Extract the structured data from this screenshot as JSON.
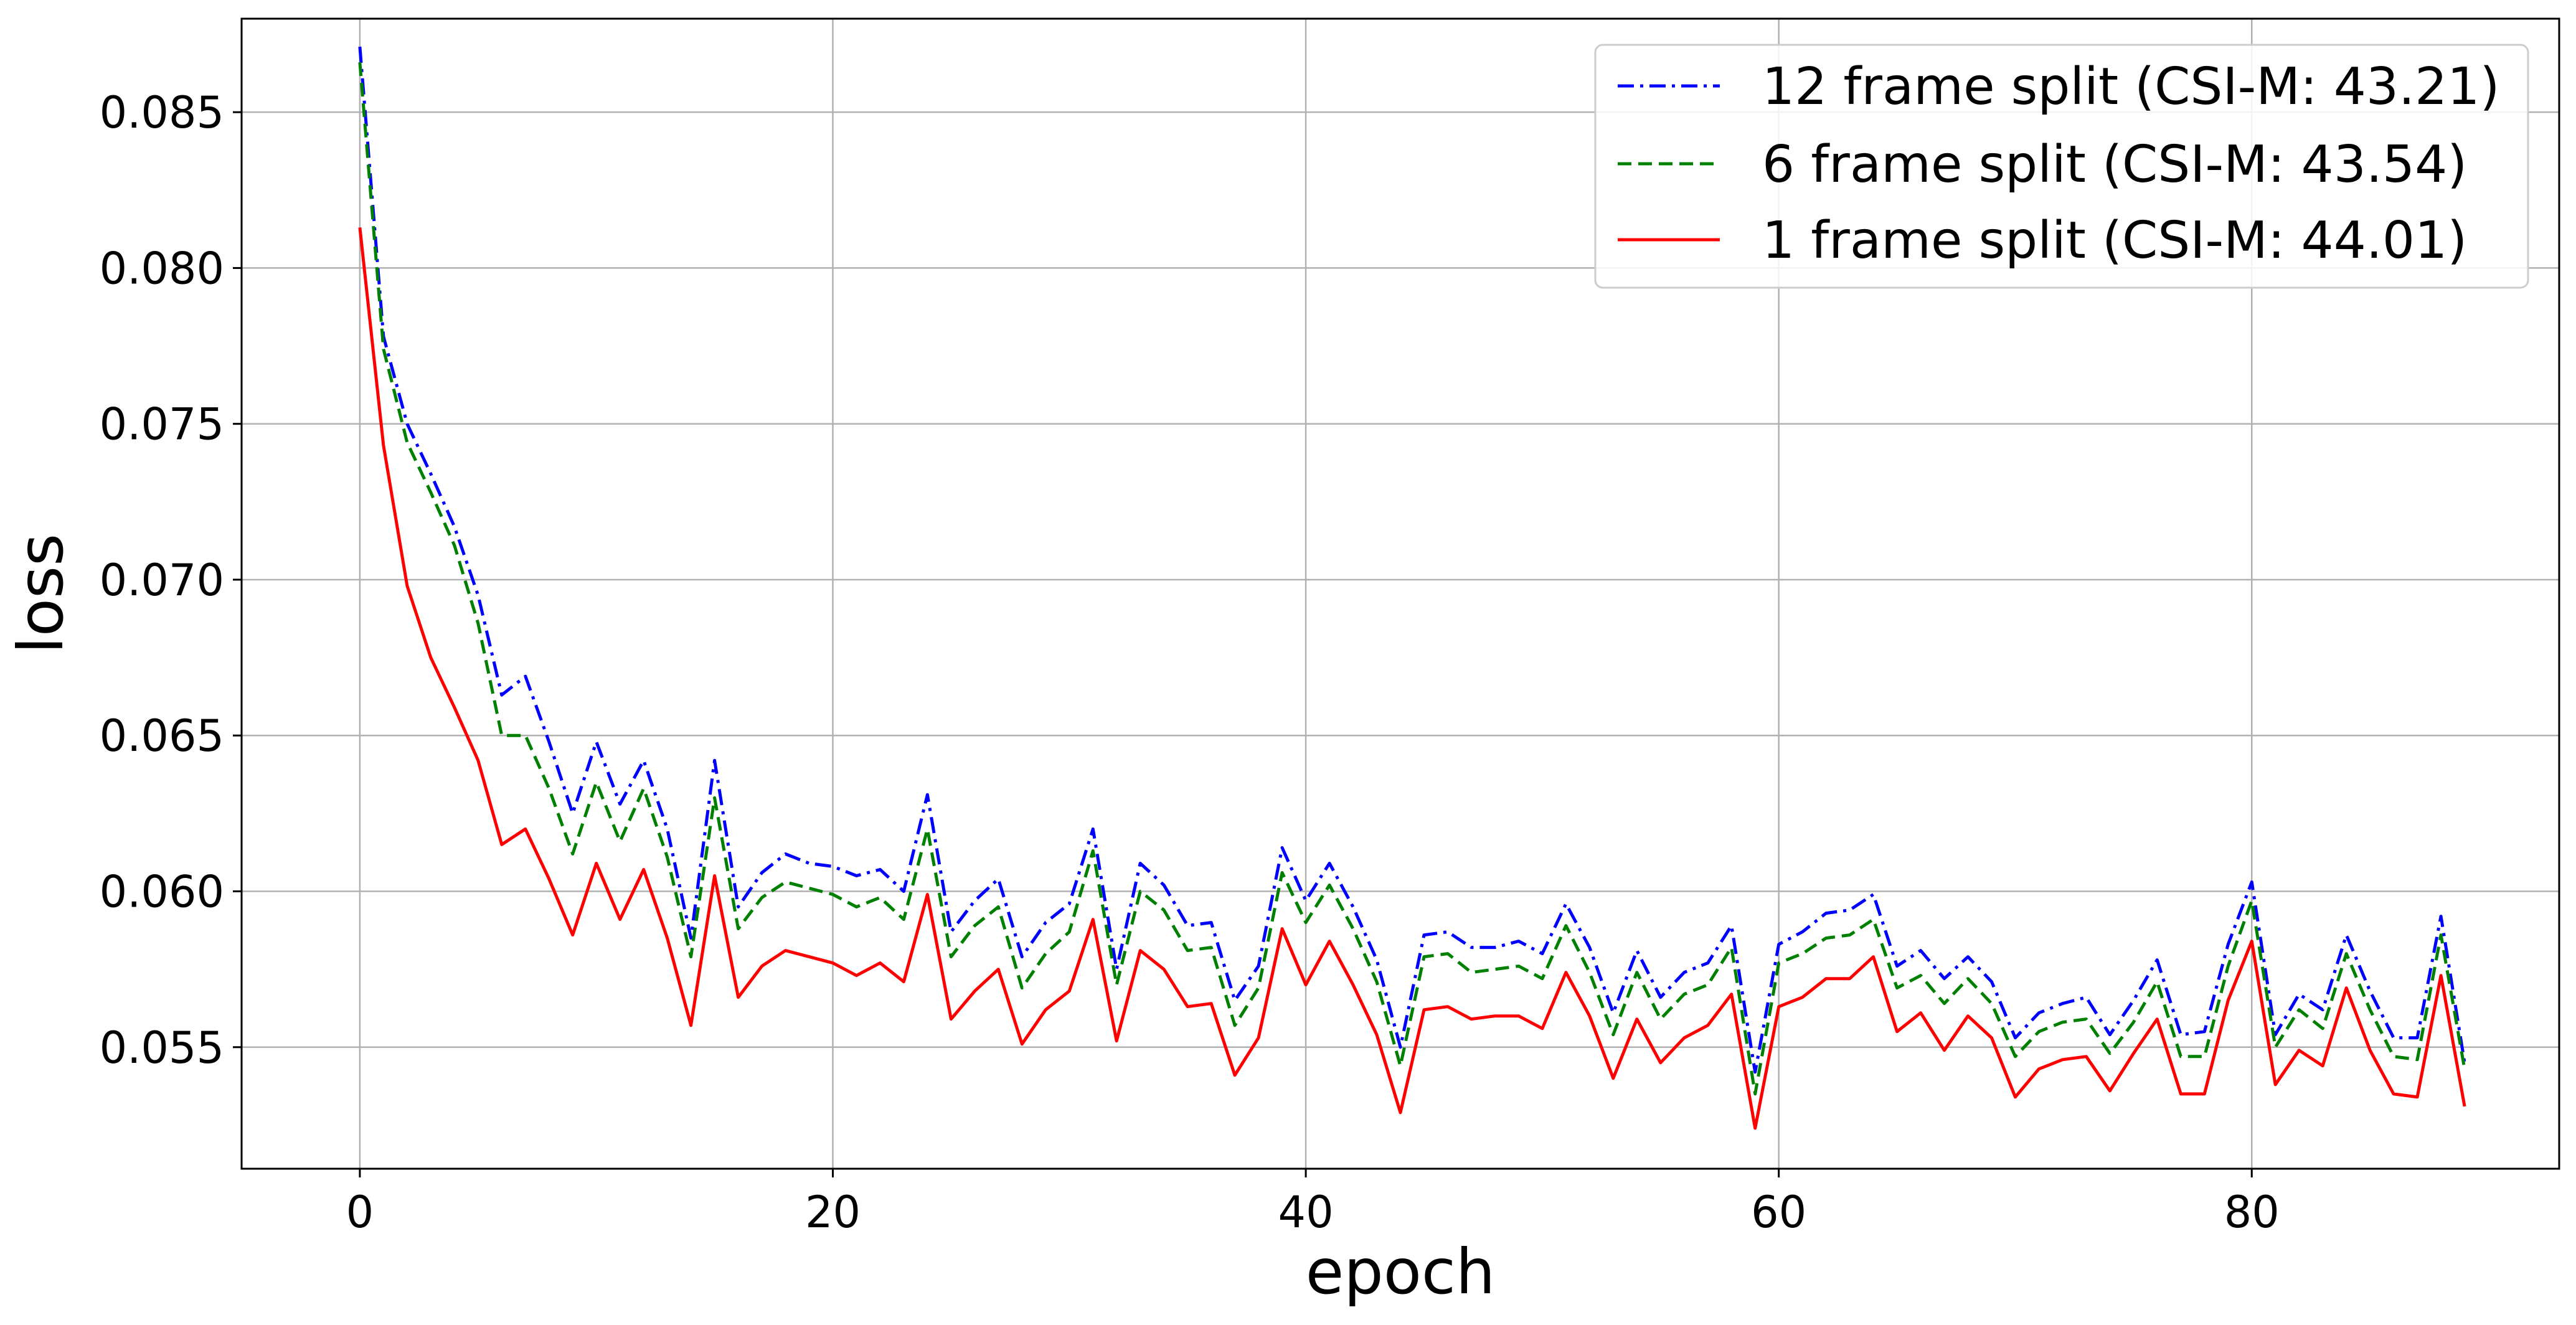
{
  "chart_data": {
    "type": "line",
    "xlabel": "epoch",
    "ylabel": "loss",
    "xlim": [
      -5,
      93
    ],
    "ylim": [
      0.0511,
      0.088
    ],
    "xticks": [
      0,
      20,
      40,
      60,
      80
    ],
    "yticks": [
      0.055,
      0.06,
      0.065,
      0.07,
      0.075,
      0.08,
      0.085
    ],
    "ytick_labels": [
      "0.055",
      "0.060",
      "0.065",
      "0.070",
      "0.075",
      "0.080",
      "0.085"
    ],
    "grid": true,
    "legend_position": "top-right",
    "x": [
      0,
      1,
      2,
      3,
      4,
      5,
      6,
      7,
      8,
      9,
      10,
      11,
      12,
      13,
      14,
      15,
      16,
      17,
      18,
      19,
      20,
      21,
      22,
      23,
      24,
      25,
      26,
      27,
      28,
      29,
      30,
      31,
      32,
      33,
      34,
      35,
      36,
      37,
      38,
      39,
      40,
      41,
      42,
      43,
      44,
      45,
      46,
      47,
      48,
      49,
      50,
      51,
      52,
      53,
      54,
      55,
      56,
      57,
      58,
      59,
      60,
      61,
      62,
      63,
      64,
      65,
      66,
      67,
      68,
      69,
      70,
      71,
      72,
      73,
      74,
      75,
      76,
      77,
      78,
      79,
      80,
      81,
      82,
      83,
      84,
      85,
      86,
      87,
      88,
      89
    ],
    "series": [
      {
        "name": "12 frame split (CSI-M: 43.21)",
        "color": "#0000ff",
        "dash": "dashdot",
        "values": [
          0.0871,
          0.0778,
          0.075,
          0.0734,
          0.0717,
          0.0695,
          0.0663,
          0.0669,
          0.0648,
          0.0625,
          0.0648,
          0.0628,
          0.0642,
          0.062,
          0.0585,
          0.0642,
          0.0595,
          0.0606,
          0.0612,
          0.0609,
          0.0608,
          0.0605,
          0.0607,
          0.06,
          0.0631,
          0.0587,
          0.0597,
          0.0604,
          0.0579,
          0.059,
          0.0596,
          0.062,
          0.0575,
          0.0609,
          0.0602,
          0.0589,
          0.059,
          0.0565,
          0.0576,
          0.0614,
          0.0597,
          0.0609,
          0.0595,
          0.0578,
          0.055,
          0.0586,
          0.0587,
          0.0582,
          0.0582,
          0.0584,
          0.058,
          0.0596,
          0.0582,
          0.0561,
          0.0581,
          0.0566,
          0.0574,
          0.0577,
          0.0589,
          0.0542,
          0.0583,
          0.0587,
          0.0593,
          0.0594,
          0.0599,
          0.0576,
          0.0581,
          0.0572,
          0.0579,
          0.0571,
          0.0553,
          0.0561,
          0.0564,
          0.0566,
          0.0554,
          0.0565,
          0.0578,
          0.0554,
          0.0555,
          0.0583,
          0.0603,
          0.0554,
          0.0567,
          0.0562,
          0.0586,
          0.0568,
          0.0553,
          0.0553,
          0.0592,
          0.0545
        ]
      },
      {
        "name": "6 frame split (CSI-M: 43.54)",
        "color": "#008000",
        "dash": "dashed",
        "values": [
          0.0866,
          0.0774,
          0.0744,
          0.0728,
          0.0711,
          0.0686,
          0.065,
          0.065,
          0.0633,
          0.0612,
          0.0635,
          0.0616,
          0.0633,
          0.0611,
          0.0579,
          0.063,
          0.0588,
          0.0598,
          0.0603,
          0.0601,
          0.0599,
          0.0595,
          0.0598,
          0.0591,
          0.062,
          0.0579,
          0.0589,
          0.0595,
          0.0569,
          0.058,
          0.0587,
          0.0613,
          0.057,
          0.06,
          0.0594,
          0.0581,
          0.0582,
          0.0557,
          0.0569,
          0.0606,
          0.059,
          0.0602,
          0.0588,
          0.0571,
          0.0544,
          0.0579,
          0.058,
          0.0574,
          0.0575,
          0.0576,
          0.0572,
          0.0589,
          0.0574,
          0.0554,
          0.0574,
          0.0559,
          0.0567,
          0.057,
          0.0582,
          0.0535,
          0.0577,
          0.058,
          0.0585,
          0.0586,
          0.0591,
          0.0569,
          0.0573,
          0.0564,
          0.0572,
          0.0564,
          0.0547,
          0.0555,
          0.0558,
          0.0559,
          0.0548,
          0.0558,
          0.0571,
          0.0547,
          0.0547,
          0.0576,
          0.0597,
          0.055,
          0.0562,
          0.0556,
          0.058,
          0.0562,
          0.0547,
          0.0546,
          0.0586,
          0.0543
        ]
      },
      {
        "name": "1 frame split (CSI-M: 44.01)",
        "color": "#ff0000",
        "dash": "solid",
        "values": [
          0.0813,
          0.0743,
          0.0698,
          0.0675,
          0.0659,
          0.0642,
          0.0615,
          0.062,
          0.0604,
          0.0586,
          0.0609,
          0.0591,
          0.0607,
          0.0585,
          0.0557,
          0.0605,
          0.0566,
          0.0576,
          0.0581,
          0.0579,
          0.0577,
          0.0573,
          0.0577,
          0.0571,
          0.0599,
          0.0559,
          0.0568,
          0.0575,
          0.0551,
          0.0562,
          0.0568,
          0.0591,
          0.0552,
          0.0581,
          0.0575,
          0.0563,
          0.0564,
          0.0541,
          0.0553,
          0.0588,
          0.057,
          0.0584,
          0.057,
          0.0554,
          0.0529,
          0.0562,
          0.0563,
          0.0559,
          0.056,
          0.056,
          0.0556,
          0.0574,
          0.056,
          0.054,
          0.0559,
          0.0545,
          0.0553,
          0.0557,
          0.0567,
          0.0524,
          0.0563,
          0.0566,
          0.0572,
          0.0572,
          0.0579,
          0.0555,
          0.0561,
          0.0549,
          0.056,
          0.0553,
          0.0534,
          0.0543,
          0.0546,
          0.0547,
          0.0536,
          0.0548,
          0.0559,
          0.0535,
          0.0535,
          0.0565,
          0.0584,
          0.0538,
          0.0549,
          0.0544,
          0.0569,
          0.0549,
          0.0535,
          0.0534,
          0.0573,
          0.0531
        ]
      }
    ]
  }
}
